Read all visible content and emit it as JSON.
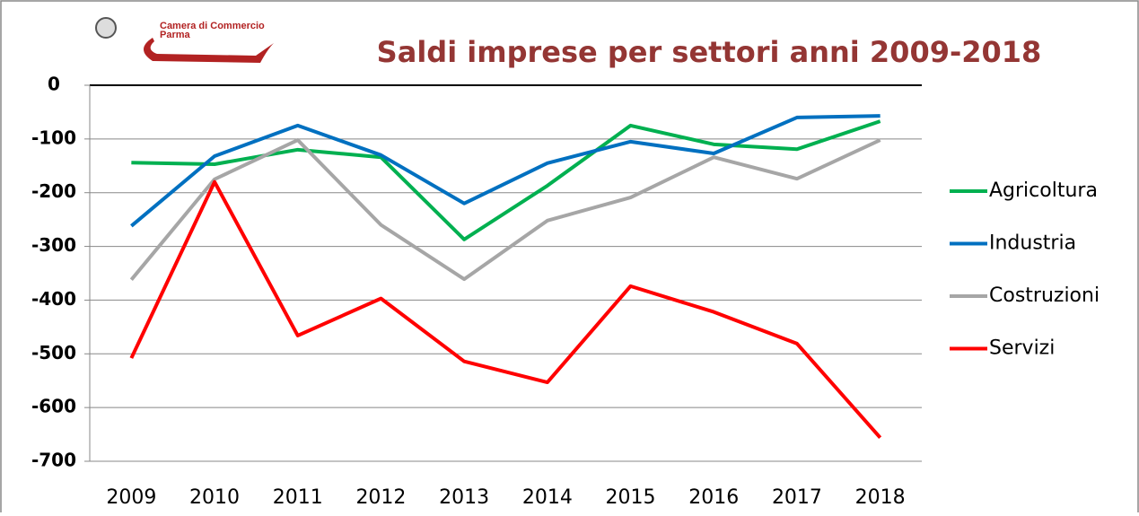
{
  "logo": {
    "line1": "Camera di Commercio",
    "line2": "Parma"
  },
  "chart_data": {
    "type": "line",
    "title": "Saldi imprese per settori anni 2009-2018",
    "categories": [
      "2009",
      "2010",
      "2011",
      "2012",
      "2013",
      "2014",
      "2015",
      "2016",
      "2017",
      "2018"
    ],
    "series": [
      {
        "name": "Agricoltura",
        "color": "#00b050",
        "values": [
          -144,
          -147,
          -120,
          -134,
          -287,
          -187,
          -75,
          -110,
          -119,
          -67
        ]
      },
      {
        "name": "Industria",
        "color": "#0070c0",
        "values": [
          -262,
          -132,
          -75,
          -130,
          -220,
          -145,
          -105,
          -127,
          -60,
          -57
        ]
      },
      {
        "name": "Costruzioni",
        "color": "#a6a6a6",
        "values": [
          -362,
          -175,
          -102,
          -260,
          -361,
          -252,
          -209,
          -134,
          -174,
          -102
        ]
      },
      {
        "name": "Servizi",
        "color": "#ff0000",
        "values": [
          -508,
          -180,
          -466,
          -397,
          -514,
          -553,
          -374,
          -422,
          -481,
          -656
        ]
      }
    ],
    "ylim": [
      -700,
      0
    ],
    "yticks": [
      0,
      -100,
      -200,
      -300,
      -400,
      -500,
      -600,
      -700
    ],
    "grid": true,
    "legend": "right"
  }
}
